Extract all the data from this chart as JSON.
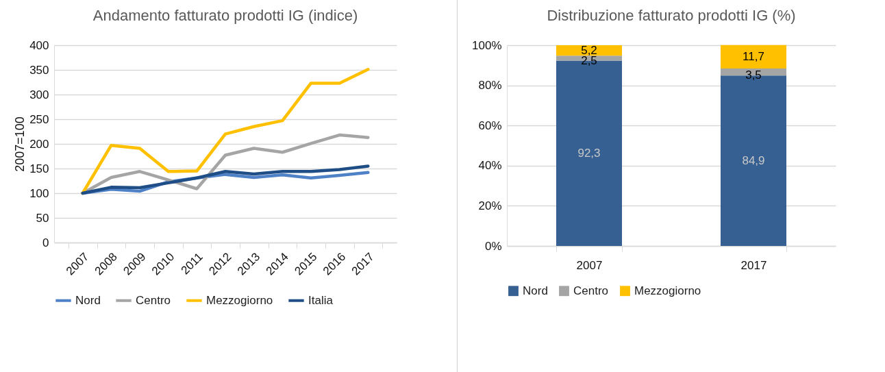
{
  "chart_data": [
    {
      "type": "line",
      "title": "Andamento fatturato prodotti IG (indice)",
      "ylabel": "2007=100",
      "categories": [
        "2007",
        "2008",
        "2009",
        "2010",
        "2011",
        "2012",
        "2013",
        "2014",
        "2015",
        "2016",
        "2017"
      ],
      "series": [
        {
          "name": "Nord",
          "color": "#4f81c7",
          "values": [
            100,
            108,
            104,
            123,
            131,
            138,
            132,
            137,
            131,
            136,
            142
          ]
        },
        {
          "name": "Centro",
          "color": "#a5a5a5",
          "values": [
            100,
            132,
            144,
            127,
            109,
            177,
            191,
            183,
            201,
            218,
            213
          ]
        },
        {
          "name": "Mezzogiorno",
          "color": "#ffc000",
          "values": [
            100,
            197,
            191,
            144,
            145,
            220,
            235,
            247,
            323,
            323,
            351
          ]
        },
        {
          "name": "Italia",
          "color": "#1f4e87",
          "values": [
            100,
            112,
            111,
            121,
            131,
            144,
            139,
            144,
            144,
            148,
            155
          ]
        }
      ],
      "ylim": [
        0,
        400
      ],
      "yticks": [
        0,
        50,
        100,
        150,
        200,
        250,
        300,
        350,
        400
      ],
      "grid": "y",
      "legend": "bottom",
      "line_style": "solid",
      "marker": "none"
    },
    {
      "type": "bar",
      "title": "Distribuzione fatturato prodotti IG (%)",
      "categories": [
        "2007",
        "2017"
      ],
      "stacked": true,
      "series": [
        {
          "name": "Nord",
          "color": "#376092",
          "values": [
            92.3,
            84.9
          ],
          "value_labels": [
            "92,3",
            "84,9"
          ]
        },
        {
          "name": "Centro",
          "color": "#a5a5a5",
          "values": [
            2.5,
            3.5
          ],
          "value_labels": [
            "2,5",
            "3,5"
          ]
        },
        {
          "name": "Mezzogiorno",
          "color": "#ffc000",
          "values": [
            5.2,
            11.7
          ],
          "value_labels": [
            "5,2",
            "11,7"
          ]
        }
      ],
      "ylim": [
        0,
        100
      ],
      "yticks": [
        {
          "value": 0,
          "label": "0%"
        },
        {
          "value": 20,
          "label": "20%"
        },
        {
          "value": 40,
          "label": "40%"
        },
        {
          "value": 60,
          "label": "60%"
        },
        {
          "value": 80,
          "label": "80%"
        },
        {
          "value": 100,
          "label": "100%"
        }
      ],
      "grid": "y",
      "legend": "bottom"
    }
  ]
}
